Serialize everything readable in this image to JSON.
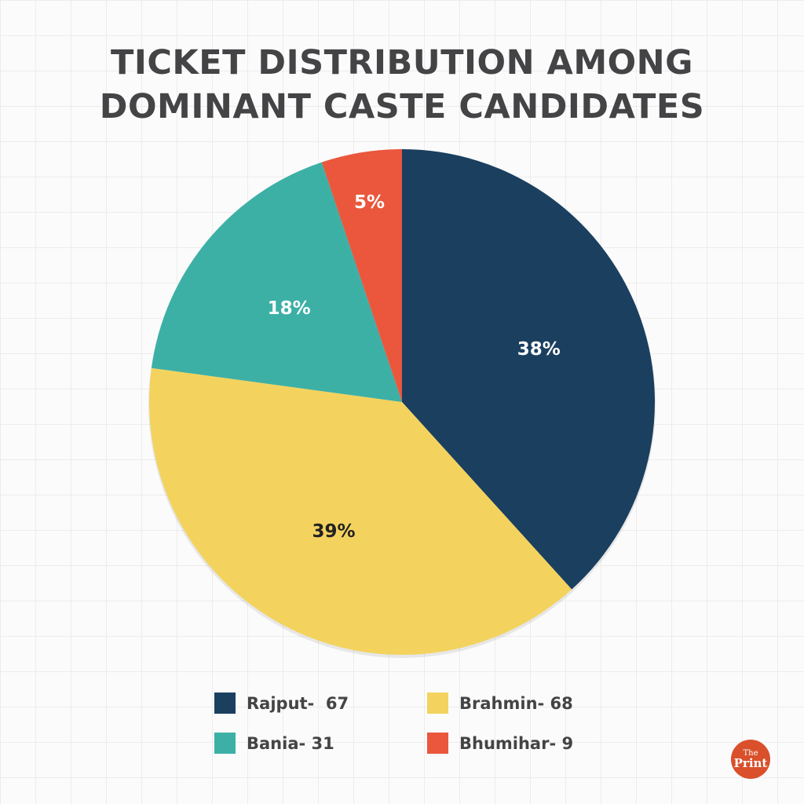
{
  "title": {
    "line1": "TICKET DISTRIBUTION AMONG",
    "line2": "DOMINANT CASTE CANDIDATES"
  },
  "logo": {
    "line1": "The",
    "line2": "Print",
    "color": "#d9502b"
  },
  "chart_data": {
    "type": "pie",
    "title": "Ticket Distribution Among Dominant Caste Candidates",
    "categories": [
      "Rajput",
      "Brahmin",
      "Bania",
      "Bhumihar"
    ],
    "values": [
      67,
      68,
      31,
      9
    ],
    "percent_labels": [
      "38%",
      "39%",
      "18%",
      "5%"
    ],
    "colors": [
      "#1b3f5f",
      "#f3d35e",
      "#3db0a6",
      "#ea573d"
    ],
    "label_colors": [
      "#ffffff",
      "#222222",
      "#ffffff",
      "#ffffff"
    ],
    "start_angle_deg": 0,
    "direction": "clockwise",
    "legend": {
      "position": "bottom",
      "entries": [
        {
          "label": "Rajput-  67",
          "color": "#1b3f5f"
        },
        {
          "label": "Brahmin- 68",
          "color": "#f3d35e"
        },
        {
          "label": "Bania- 31",
          "color": "#3db0a6"
        },
        {
          "label": "Bhumihar- 9",
          "color": "#ea573d"
        }
      ]
    }
  }
}
